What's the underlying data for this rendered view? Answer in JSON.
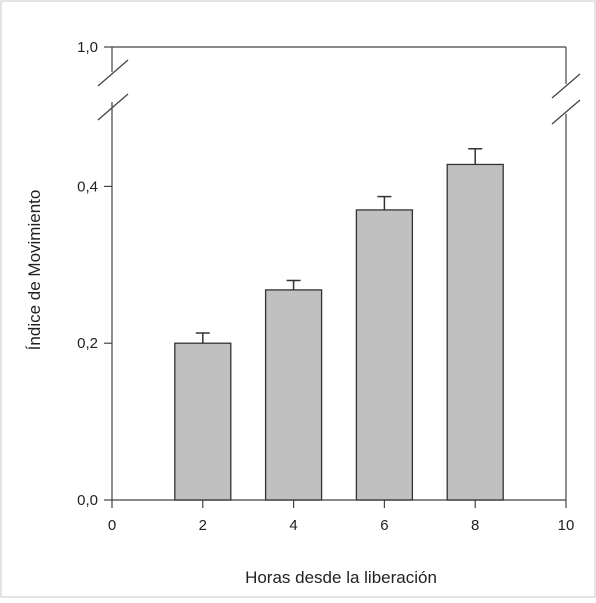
{
  "chart_data": {
    "type": "bar",
    "xlabel": "Horas desde la liberación",
    "ylabel": "Índice de Movimiento",
    "x": [
      2,
      4,
      6,
      8
    ],
    "values": [
      0.2,
      0.268,
      0.37,
      0.428
    ],
    "errors": [
      0.013,
      0.012,
      0.017,
      0.02
    ],
    "xlim": [
      0,
      10
    ],
    "ylim": [
      0.0,
      1.0
    ],
    "y_axis_break": [
      0.5,
      0.95
    ],
    "x_ticks": [
      {
        "value": 0,
        "label": "0"
      },
      {
        "value": 2,
        "label": "2"
      },
      {
        "value": 4,
        "label": "4"
      },
      {
        "value": 6,
        "label": "6"
      },
      {
        "value": 8,
        "label": "8"
      },
      {
        "value": 10,
        "label": "10"
      }
    ],
    "y_ticks": [
      {
        "value": 0.0,
        "label": "0,0"
      },
      {
        "value": 0.2,
        "label": "0,2"
      },
      {
        "value": 0.4,
        "label": "0,4"
      },
      {
        "value": 1.0,
        "label": "1,0"
      }
    ],
    "bar_color": "#c0c0c0",
    "edge_color": "#333333",
    "grid": false
  }
}
